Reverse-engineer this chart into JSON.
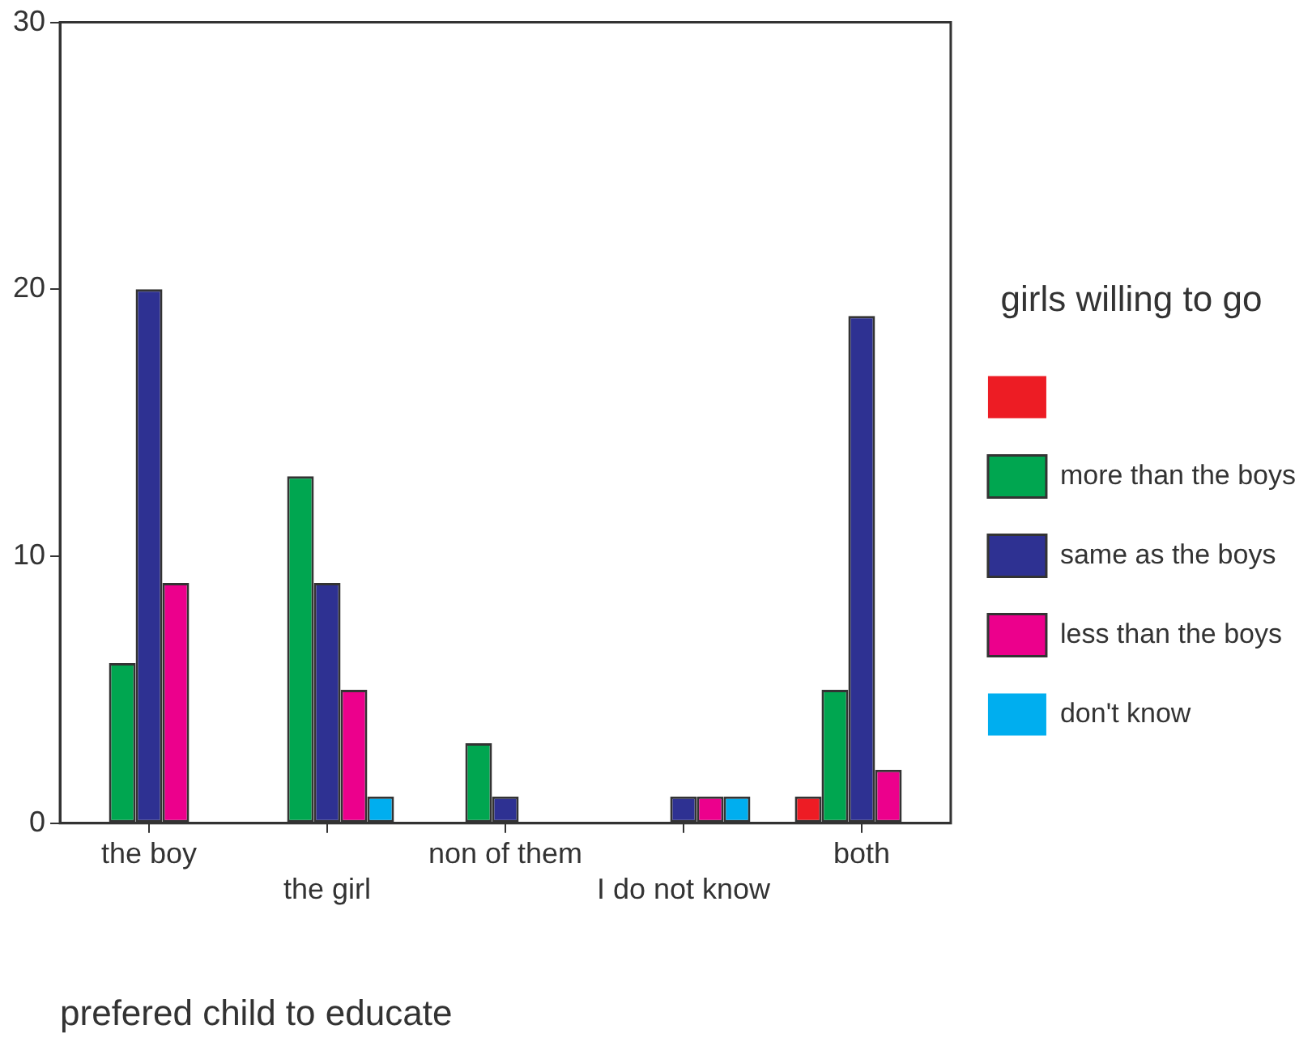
{
  "chart_data": {
    "type": "bar",
    "xlabel": "prefered child to educate",
    "legend_title": "girls willing to go",
    "categories": [
      "the boy",
      "the girl",
      "non of them",
      "I do not know",
      "both"
    ],
    "series": [
      {
        "color": "#ed1c24",
        "values": [
          0,
          0,
          0,
          0,
          1
        ]
      },
      {
        "name": "more than the boys",
        "color": "#00a650",
        "values": [
          6,
          13,
          3,
          0,
          5
        ]
      },
      {
        "name": "same as the boys",
        "color": "#2e3192",
        "values": [
          20,
          9,
          1,
          1,
          19
        ]
      },
      {
        "name": "less than the boys",
        "color": "#ec008c",
        "values": [
          9,
          5,
          0,
          1,
          2
        ]
      },
      {
        "name": "don't know",
        "color": "#00aeef",
        "values": [
          0,
          1,
          0,
          1,
          0
        ]
      }
    ],
    "ylim": [
      0,
      30
    ],
    "yticks": [
      0,
      10,
      20,
      30
    ],
    "grid": false,
    "legend": "right"
  }
}
